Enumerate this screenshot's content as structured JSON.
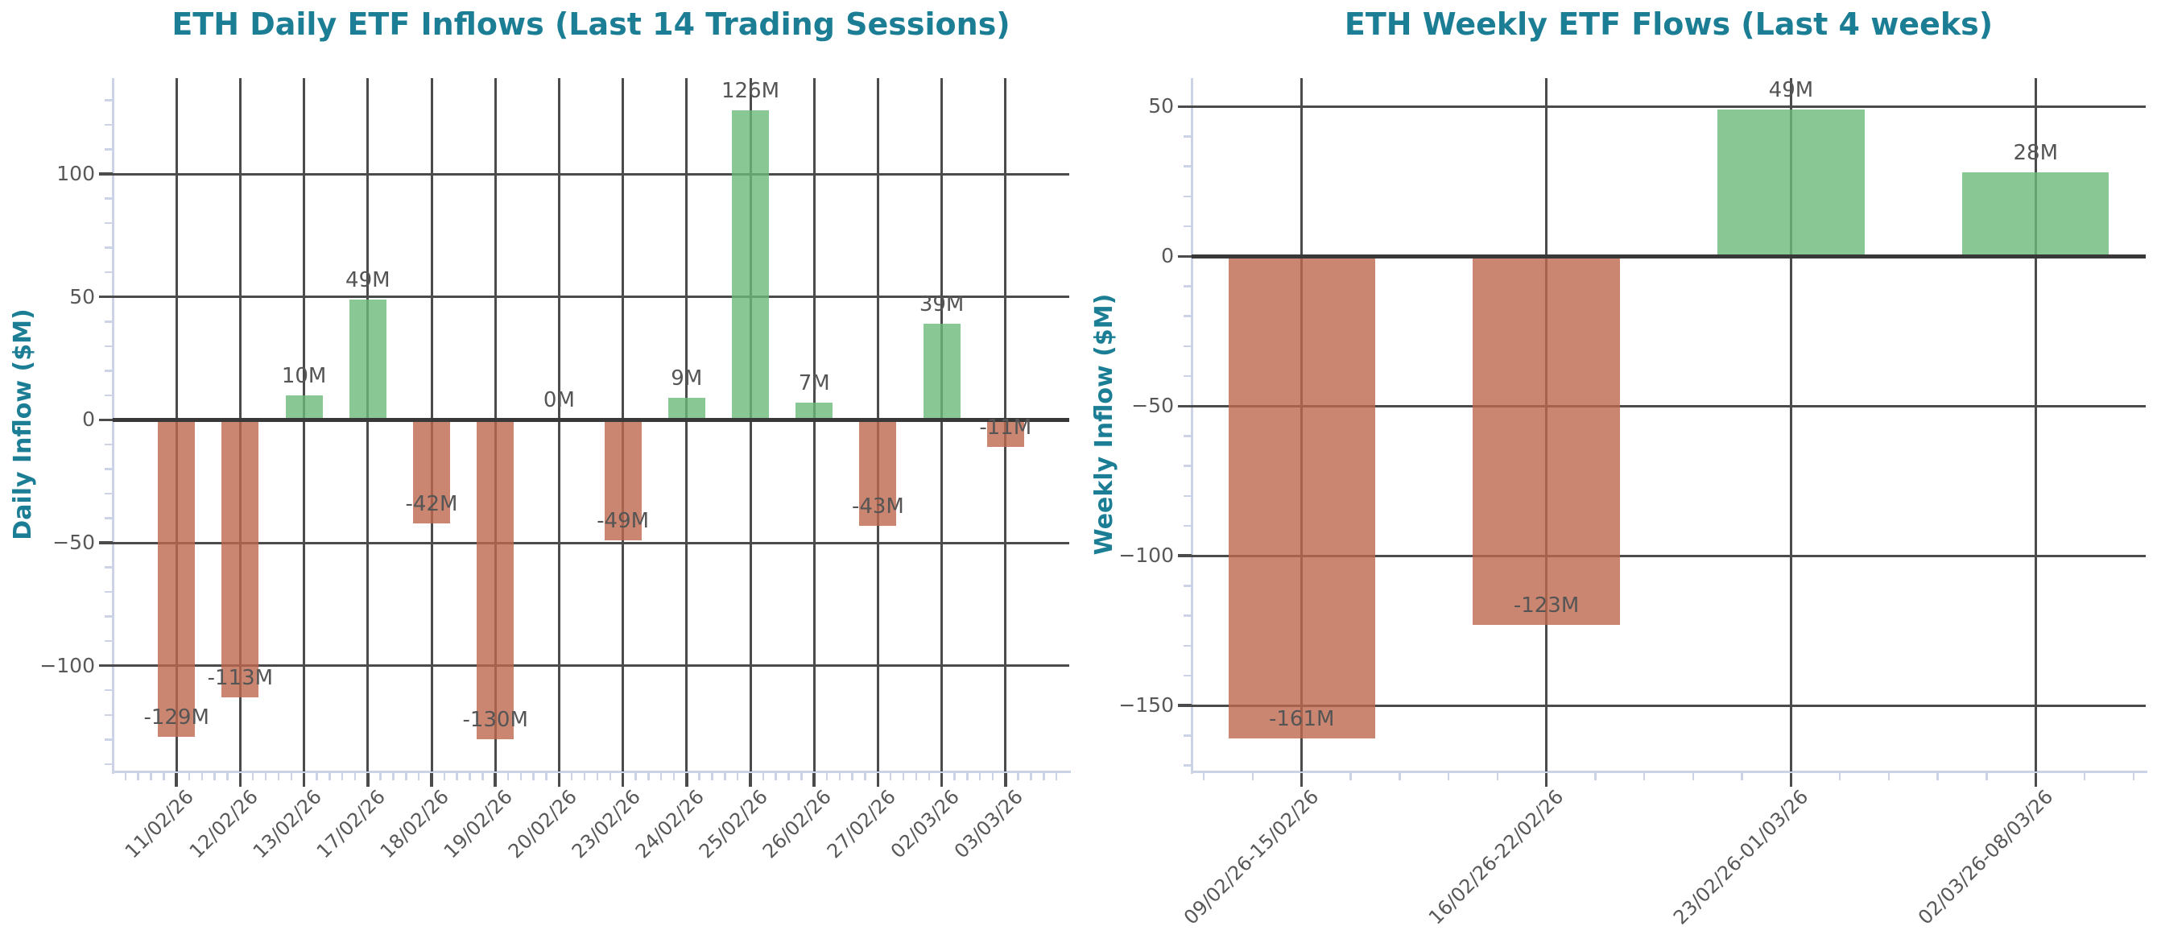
{
  "colors": {
    "title": "#1b7e94",
    "axis_label": "#1b7e94",
    "tick_label": "#585858",
    "value_label": "#555555",
    "grid": "#4b4b4b",
    "zero_line": "#383838",
    "spine": "#cdd3e6",
    "positive_bar": "rgba(108,185,122,0.8)",
    "negative_bar": "rgba(190,104,78,0.8)"
  },
  "chart_data": [
    {
      "type": "bar",
      "title": "ETH Daily ETF Inflows (Last 14 Trading Sessions)",
      "xlabel": "",
      "ylabel": "Daily Inflow ($M)",
      "categories": [
        "11/02/26",
        "12/02/26",
        "13/02/26",
        "17/02/26",
        "18/02/26",
        "19/02/26",
        "20/02/26",
        "23/02/26",
        "24/02/26",
        "25/02/26",
        "26/02/26",
        "27/02/26",
        "02/03/26",
        "03/03/26"
      ],
      "values": [
        -129,
        -113,
        10,
        49,
        -42,
        -130,
        0,
        -49,
        9,
        126,
        7,
        -43,
        39,
        -11
      ],
      "bar_labels": [
        "-129M",
        "-113M",
        "10M",
        "49M",
        "-42M",
        "-130M",
        "0M",
        "-49M",
        "9M",
        "126M",
        "7M",
        "-43M",
        "39M",
        "-11M"
      ],
      "yticks": [
        100,
        50,
        0,
        -50,
        -100
      ],
      "ytick_labels": [
        "100",
        "50",
        "0",
        "−50",
        "−100"
      ],
      "ylim": [
        -143,
        139
      ],
      "grid": true,
      "legend": null,
      "bar_width_frac": 0.58,
      "x_margin": 1.0,
      "minor_ytick_step": 10,
      "minor_xticks_per_interval": 5
    },
    {
      "type": "bar",
      "title": "ETH Weekly ETF Flows (Last 4 weeks)",
      "xlabel": "",
      "ylabel": "Weekly Inflow ($M)",
      "categories": [
        "09/02/26-15/02/26",
        "16/02/26-22/02/26",
        "23/02/26-01/03/26",
        "02/03/26-08/03/26"
      ],
      "values": [
        -161,
        -123,
        49,
        28
      ],
      "bar_labels": [
        "-161M",
        "-123M",
        "49M",
        "28M"
      ],
      "yticks": [
        50,
        0,
        -50,
        -100,
        -150
      ],
      "ytick_labels": [
        "50",
        "0",
        "−50",
        "−100",
        "−150"
      ],
      "ylim": [
        -172,
        59.5
      ],
      "grid": true,
      "legend": null,
      "bar_width_frac": 0.6,
      "x_margin": 0.45,
      "minor_ytick_step": 10,
      "minor_xticks_per_interval": 5
    }
  ]
}
